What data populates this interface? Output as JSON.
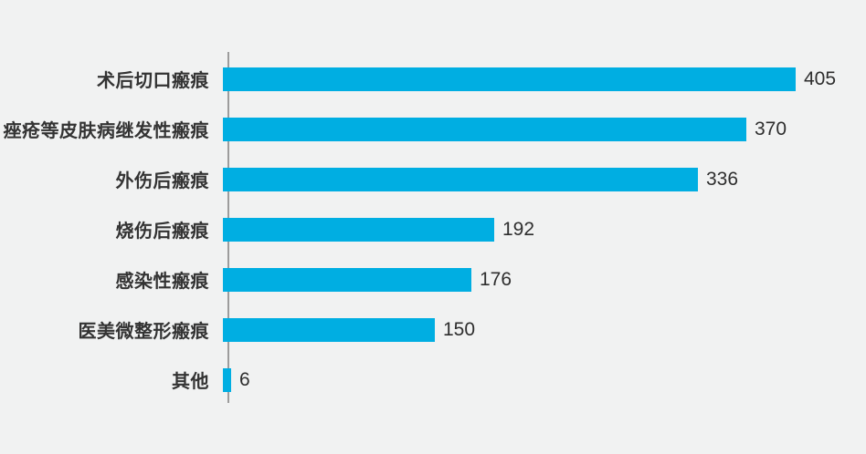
{
  "chart_data": {
    "type": "bar",
    "orientation": "horizontal",
    "title": "",
    "xlabel": "",
    "ylabel": "",
    "categories": [
      "术后切口瘢痕",
      "痤疮等皮肤病继发性瘢痕",
      "外伤后瘢痕",
      "烧伤后瘢痕",
      "感染性瘢痕",
      "医美微整形瘢痕",
      "其他"
    ],
    "values": [
      405,
      370,
      336,
      192,
      176,
      150,
      6
    ],
    "xlim": [
      0,
      420
    ],
    "grid": false,
    "legend": false,
    "value_labels_shown": true,
    "colors": {
      "bar": "#00AEE2",
      "axis_line": "#9C9C9C",
      "background": "#F1F2F2",
      "category_text": "#333333",
      "value_text": "#2E2E2E"
    }
  }
}
